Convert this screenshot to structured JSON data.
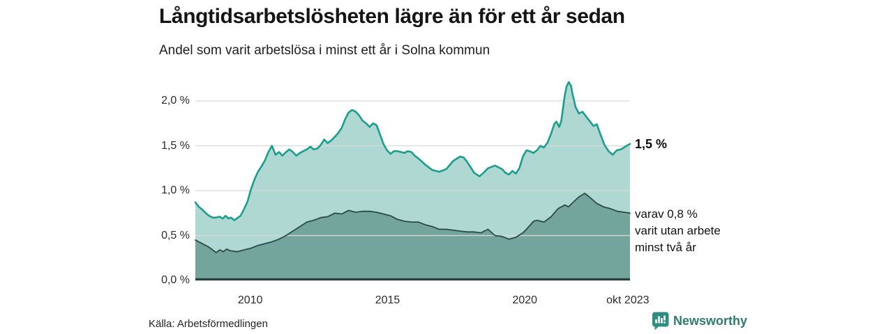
{
  "header": {
    "title": "Långtidsarbetslösheten lägre än för ett år sedan",
    "subtitle": "Andel som varit arbetslösa i minst ett år i Solna kommun"
  },
  "chart_data": {
    "type": "area",
    "title": "Långtidsarbetslösheten lägre än för ett år sedan",
    "subtitle": "Andel som varit arbetslösa i minst ett år i Solna kommun",
    "unit": "%",
    "xlabel": "",
    "ylabel": "",
    "xlim": [
      2008.0,
      2023.83
    ],
    "ylim": [
      0,
      2.0
    ],
    "grid": true,
    "grid_color": "#d9d9d9",
    "axis_color": "#26413c",
    "x_ticks": [
      {
        "t": 2010,
        "label": "2010"
      },
      {
        "t": 2015,
        "label": "2015"
      },
      {
        "t": 2020,
        "label": "2020"
      },
      {
        "t": 2023.75,
        "label": "okt 2023"
      }
    ],
    "y_ticks": [
      {
        "v": 0.0,
        "label": "0,0 %"
      },
      {
        "v": 0.5,
        "label": "0,5 %"
      },
      {
        "v": 1.0,
        "label": "1,0 %"
      },
      {
        "v": 1.5,
        "label": "1,5 %"
      },
      {
        "v": 2.0,
        "label": "2,0 %"
      }
    ],
    "series": [
      {
        "name": "Arbetslösa minst ett år",
        "line_color": "#1b9e8d",
        "fill_color": "#aed8d1",
        "end_value": 1.5,
        "end_label": "1,5 %",
        "points": [
          [
            2008.0,
            0.87
          ],
          [
            2008.13,
            0.82
          ],
          [
            2008.25,
            0.79
          ],
          [
            2008.38,
            0.75
          ],
          [
            2008.5,
            0.72
          ],
          [
            2008.63,
            0.7
          ],
          [
            2008.75,
            0.7
          ],
          [
            2008.88,
            0.71
          ],
          [
            2009.0,
            0.69
          ],
          [
            2009.1,
            0.72
          ],
          [
            2009.2,
            0.69
          ],
          [
            2009.3,
            0.7
          ],
          [
            2009.42,
            0.67
          ],
          [
            2009.55,
            0.7
          ],
          [
            2009.65,
            0.72
          ],
          [
            2009.78,
            0.8
          ],
          [
            2009.9,
            0.88
          ],
          [
            2010.03,
            1.02
          ],
          [
            2010.16,
            1.13
          ],
          [
            2010.28,
            1.21
          ],
          [
            2010.41,
            1.27
          ],
          [
            2010.54,
            1.34
          ],
          [
            2010.66,
            1.43
          ],
          [
            2010.79,
            1.5
          ],
          [
            2010.92,
            1.4
          ],
          [
            2011.05,
            1.43
          ],
          [
            2011.17,
            1.39
          ],
          [
            2011.3,
            1.43
          ],
          [
            2011.43,
            1.46
          ],
          [
            2011.55,
            1.43
          ],
          [
            2011.68,
            1.39
          ],
          [
            2011.81,
            1.42
          ],
          [
            2011.93,
            1.44
          ],
          [
            2012.06,
            1.46
          ],
          [
            2012.19,
            1.49
          ],
          [
            2012.31,
            1.46
          ],
          [
            2012.44,
            1.47
          ],
          [
            2012.57,
            1.51
          ],
          [
            2012.69,
            1.57
          ],
          [
            2012.82,
            1.53
          ],
          [
            2012.95,
            1.56
          ],
          [
            2013.08,
            1.6
          ],
          [
            2013.2,
            1.64
          ],
          [
            2013.33,
            1.7
          ],
          [
            2013.46,
            1.8
          ],
          [
            2013.58,
            1.87
          ],
          [
            2013.71,
            1.9
          ],
          [
            2013.84,
            1.88
          ],
          [
            2013.96,
            1.84
          ],
          [
            2014.09,
            1.78
          ],
          [
            2014.22,
            1.75
          ],
          [
            2014.35,
            1.71
          ],
          [
            2014.47,
            1.75
          ],
          [
            2014.6,
            1.73
          ],
          [
            2014.72,
            1.63
          ],
          [
            2014.85,
            1.52
          ],
          [
            2014.98,
            1.45
          ],
          [
            2015.11,
            1.41
          ],
          [
            2015.23,
            1.44
          ],
          [
            2015.36,
            1.44
          ],
          [
            2015.49,
            1.43
          ],
          [
            2015.61,
            1.42
          ],
          [
            2015.74,
            1.44
          ],
          [
            2015.87,
            1.43
          ],
          [
            2015.99,
            1.39
          ],
          [
            2016.12,
            1.36
          ],
          [
            2016.37,
            1.29
          ],
          [
            2016.63,
            1.23
          ],
          [
            2016.88,
            1.21
          ],
          [
            2017.14,
            1.24
          ],
          [
            2017.39,
            1.33
          ],
          [
            2017.64,
            1.38
          ],
          [
            2017.77,
            1.37
          ],
          [
            2017.9,
            1.32
          ],
          [
            2018.03,
            1.26
          ],
          [
            2018.15,
            1.2
          ],
          [
            2018.35,
            1.16
          ],
          [
            2018.53,
            1.21
          ],
          [
            2018.66,
            1.25
          ],
          [
            2018.91,
            1.28
          ],
          [
            2019.04,
            1.26
          ],
          [
            2019.17,
            1.24
          ],
          [
            2019.29,
            1.2
          ],
          [
            2019.42,
            1.18
          ],
          [
            2019.55,
            1.22
          ],
          [
            2019.67,
            1.19
          ],
          [
            2019.8,
            1.25
          ],
          [
            2019.93,
            1.38
          ],
          [
            2020.06,
            1.45
          ],
          [
            2020.18,
            1.44
          ],
          [
            2020.31,
            1.42
          ],
          [
            2020.44,
            1.45
          ],
          [
            2020.57,
            1.5
          ],
          [
            2020.69,
            1.48
          ],
          [
            2020.82,
            1.53
          ],
          [
            2020.95,
            1.63
          ],
          [
            2021.07,
            1.74
          ],
          [
            2021.15,
            1.77
          ],
          [
            2021.25,
            1.71
          ],
          [
            2021.33,
            1.78
          ],
          [
            2021.45,
            2.05
          ],
          [
            2021.52,
            2.16
          ],
          [
            2021.6,
            2.21
          ],
          [
            2021.68,
            2.17
          ],
          [
            2021.75,
            2.06
          ],
          [
            2021.85,
            1.93
          ],
          [
            2021.97,
            1.86
          ],
          [
            2022.1,
            1.88
          ],
          [
            2022.22,
            1.83
          ],
          [
            2022.35,
            1.78
          ],
          [
            2022.5,
            1.72
          ],
          [
            2022.62,
            1.74
          ],
          [
            2022.75,
            1.63
          ],
          [
            2022.9,
            1.51
          ],
          [
            2023.05,
            1.44
          ],
          [
            2023.2,
            1.4
          ],
          [
            2023.35,
            1.45
          ],
          [
            2023.5,
            1.46
          ],
          [
            2023.65,
            1.49
          ],
          [
            2023.83,
            1.52
          ]
        ]
      },
      {
        "name": "Varav utan arbete minst två år",
        "line_color": "#2c4a45",
        "fill_color": "#74a59d",
        "end_value": 0.8,
        "end_label_lines": [
          "varav 0,8 %",
          "varit utan arbete",
          "minst två år"
        ],
        "points": [
          [
            2008.0,
            0.45
          ],
          [
            2008.25,
            0.41
          ],
          [
            2008.5,
            0.37
          ],
          [
            2008.76,
            0.31
          ],
          [
            2008.89,
            0.34
          ],
          [
            2009.02,
            0.32
          ],
          [
            2009.14,
            0.35
          ],
          [
            2009.27,
            0.33
          ],
          [
            2009.52,
            0.32
          ],
          [
            2009.78,
            0.34
          ],
          [
            2010.03,
            0.36
          ],
          [
            2010.28,
            0.39
          ],
          [
            2010.54,
            0.41
          ],
          [
            2010.79,
            0.43
          ],
          [
            2011.05,
            0.46
          ],
          [
            2011.3,
            0.5
          ],
          [
            2011.55,
            0.55
          ],
          [
            2011.81,
            0.6
          ],
          [
            2012.06,
            0.65
          ],
          [
            2012.31,
            0.67
          ],
          [
            2012.57,
            0.7
          ],
          [
            2012.82,
            0.71
          ],
          [
            2013.08,
            0.75
          ],
          [
            2013.33,
            0.74
          ],
          [
            2013.58,
            0.78
          ],
          [
            2013.84,
            0.76
          ],
          [
            2014.09,
            0.77
          ],
          [
            2014.35,
            0.77
          ],
          [
            2014.6,
            0.76
          ],
          [
            2014.85,
            0.74
          ],
          [
            2015.11,
            0.72
          ],
          [
            2015.36,
            0.68
          ],
          [
            2015.61,
            0.66
          ],
          [
            2015.87,
            0.65
          ],
          [
            2016.12,
            0.65
          ],
          [
            2016.37,
            0.62
          ],
          [
            2016.63,
            0.6
          ],
          [
            2016.88,
            0.57
          ],
          [
            2017.14,
            0.57
          ],
          [
            2017.39,
            0.56
          ],
          [
            2017.64,
            0.55
          ],
          [
            2017.9,
            0.54
          ],
          [
            2018.15,
            0.54
          ],
          [
            2018.4,
            0.53
          ],
          [
            2018.66,
            0.57
          ],
          [
            2018.91,
            0.5
          ],
          [
            2019.17,
            0.49
          ],
          [
            2019.42,
            0.46
          ],
          [
            2019.67,
            0.48
          ],
          [
            2019.93,
            0.53
          ],
          [
            2020.06,
            0.57
          ],
          [
            2020.32,
            0.66
          ],
          [
            2020.45,
            0.67
          ],
          [
            2020.7,
            0.65
          ],
          [
            2020.96,
            0.71
          ],
          [
            2021.21,
            0.8
          ],
          [
            2021.46,
            0.84
          ],
          [
            2021.59,
            0.82
          ],
          [
            2021.72,
            0.86
          ],
          [
            2021.97,
            0.93
          ],
          [
            2022.18,
            0.97
          ],
          [
            2022.35,
            0.93
          ],
          [
            2022.61,
            0.86
          ],
          [
            2022.86,
            0.82
          ],
          [
            2023.11,
            0.8
          ],
          [
            2023.37,
            0.77
          ],
          [
            2023.62,
            0.76
          ],
          [
            2023.83,
            0.75
          ]
        ]
      }
    ],
    "legend_position": "right-annotations"
  },
  "footer": {
    "source": "Källa: Arbetsförmedlingen",
    "brand": "Newsworthy"
  }
}
